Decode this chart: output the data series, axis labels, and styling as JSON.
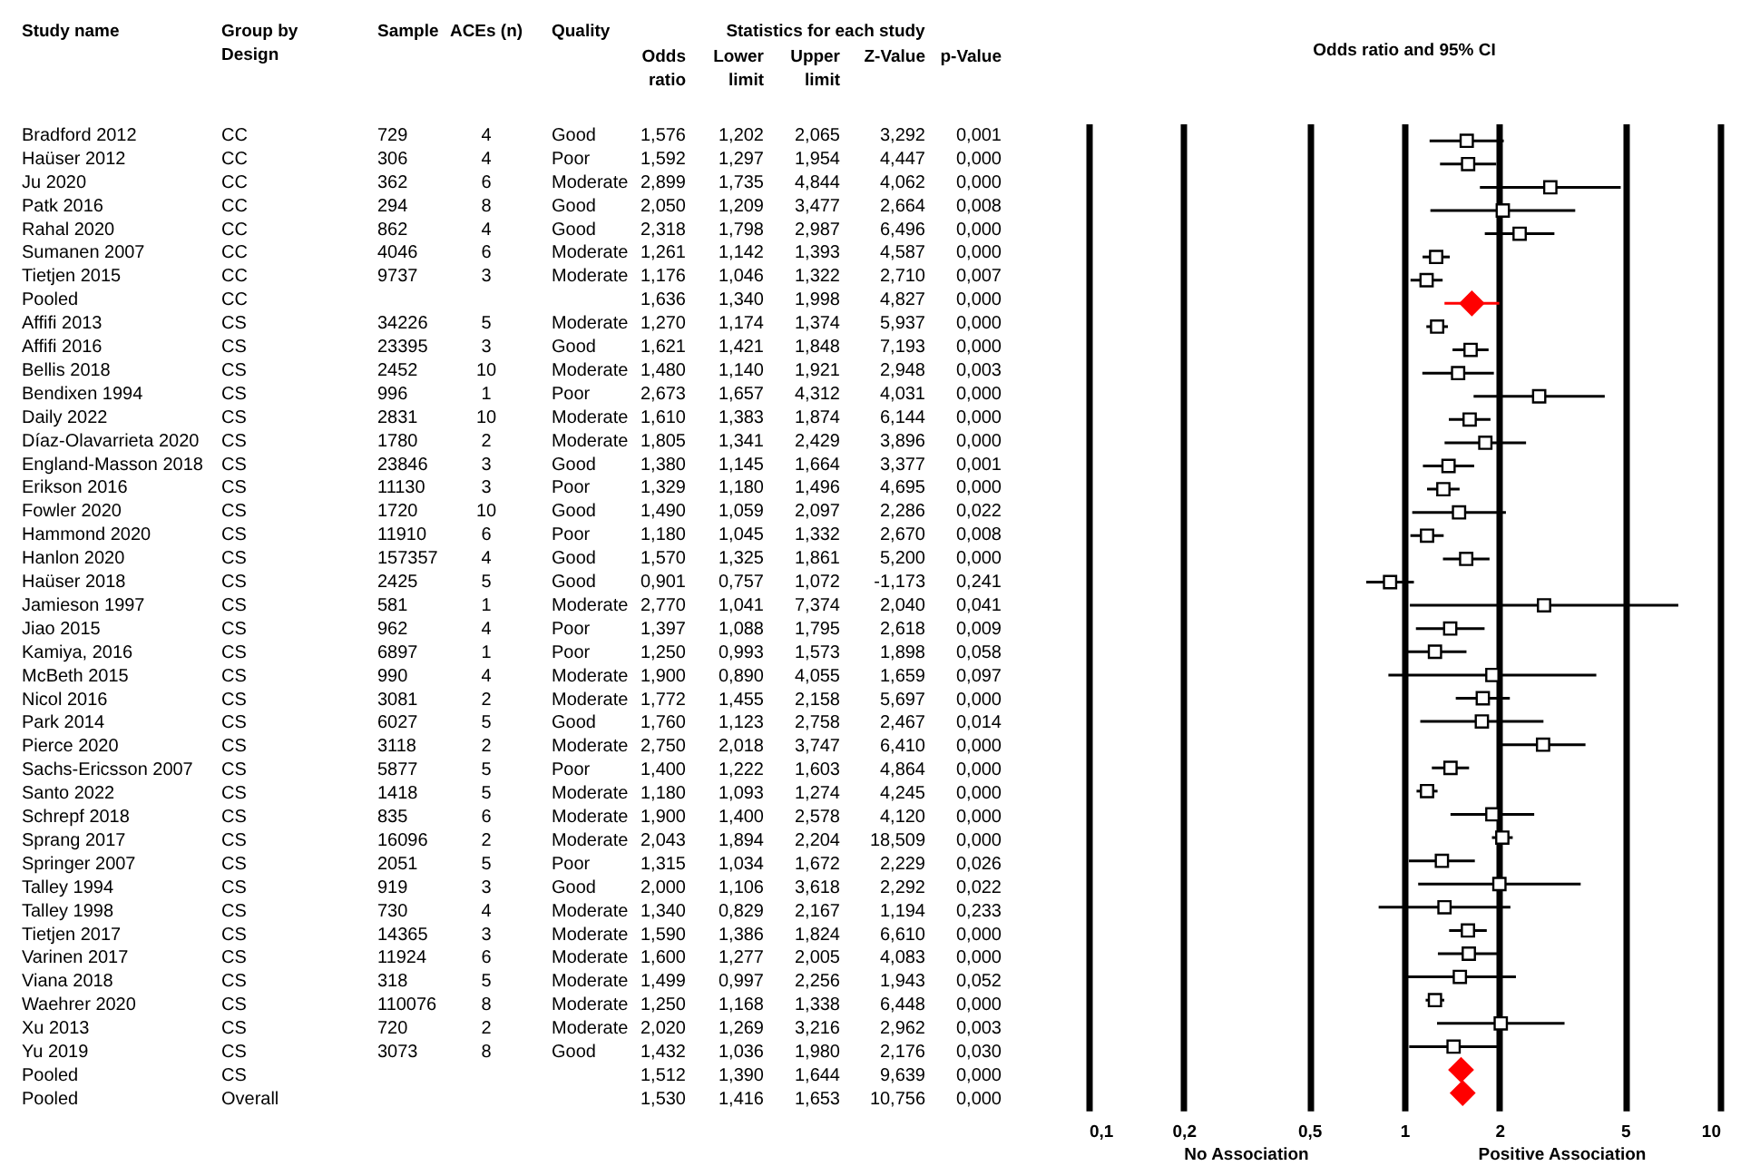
{
  "chart_data": [
    {
      "type": "other",
      "subtitle": "Statistics for each study",
      "categories": [
        "Study name",
        "Group by\nDesign",
        "Sample",
        "ACEs (n)",
        "Quality",
        "Odds\nratio",
        "Lower\nlimit",
        "Upper\nlimit",
        "Z-Value",
        "p-Value"
      ],
      "cell_labels": [
        [
          "Bradford 2012",
          "CC",
          "729",
          "4",
          "Good",
          "1,576",
          "1,202",
          "2,065",
          "3,292",
          "0,001"
        ],
        [
          "Haüser 2012",
          "CC",
          "306",
          "4",
          "Poor",
          "1,592",
          "1,297",
          "1,954",
          "4,447",
          "0,000"
        ],
        [
          "Ju 2020",
          "CC",
          "362",
          "6",
          "Moderate",
          "2,899",
          "1,735",
          "4,844",
          "4,062",
          "0,000"
        ],
        [
          "Patk 2016",
          "CC",
          "294",
          "8",
          "Good",
          "2,050",
          "1,209",
          "3,477",
          "2,664",
          "0,008"
        ],
        [
          "Rahal 2020",
          "CC",
          "862",
          "4",
          "Good",
          "2,318",
          "1,798",
          "2,987",
          "6,496",
          "0,000"
        ],
        [
          "Sumanen 2007",
          "CC",
          "4046",
          "6",
          "Moderate",
          "1,261",
          "1,142",
          "1,393",
          "4,587",
          "0,000"
        ],
        [
          "Tietjen 2015",
          "CC",
          "9737",
          "3",
          "Moderate",
          "1,176",
          "1,046",
          "1,322",
          "2,710",
          "0,007"
        ],
        [
          "Pooled",
          "CC",
          null,
          null,
          null,
          "1,636",
          "1,340",
          "1,998",
          "4,827",
          "0,000"
        ],
        [
          "Affifi 2013",
          "CS",
          "34226",
          "5",
          "Moderate",
          "1,270",
          "1,174",
          "1,374",
          "5,937",
          "0,000"
        ],
        [
          "Affifi 2016",
          "CS",
          "23395",
          "3",
          "Good",
          "1,621",
          "1,421",
          "1,848",
          "7,193",
          "0,000"
        ],
        [
          "Bellis 2018",
          "CS",
          "2452",
          "10",
          "Moderate",
          "1,480",
          "1,140",
          "1,921",
          "2,948",
          "0,003"
        ],
        [
          "Bendixen 1994",
          "CS",
          "996",
          "1",
          "Poor",
          "2,673",
          "1,657",
          "4,312",
          "4,031",
          "0,000"
        ],
        [
          "Daily 2022",
          "CS",
          "2831",
          "10",
          "Moderate",
          "1,610",
          "1,383",
          "1,874",
          "6,144",
          "0,000"
        ],
        [
          "Díaz-Olavarrieta 2020",
          "CS",
          "1780",
          "2",
          "Moderate",
          "1,805",
          "1,341",
          "2,429",
          "3,896",
          "0,000"
        ],
        [
          "England-Masson 2018",
          "CS",
          "23846",
          "3",
          "Good",
          "1,380",
          "1,145",
          "1,664",
          "3,377",
          "0,001"
        ],
        [
          "Erikson 2016",
          "CS",
          "11130",
          "3",
          "Poor",
          "1,329",
          "1,180",
          "1,496",
          "4,695",
          "0,000"
        ],
        [
          "Fowler 2020",
          "CS",
          "1720",
          "10",
          "Good",
          "1,490",
          "1,059",
          "2,097",
          "2,286",
          "0,022"
        ],
        [
          "Hammond 2020",
          "CS",
          "11910",
          "6",
          "Poor",
          "1,180",
          "1,045",
          "1,332",
          "2,670",
          "0,008"
        ],
        [
          "Hanlon 2020",
          "CS",
          "157357",
          "4",
          "Good",
          "1,570",
          "1,325",
          "1,861",
          "5,200",
          "0,000"
        ],
        [
          "Haüser 2018",
          "CS",
          "2425",
          "5",
          "Good",
          "0,901",
          "0,757",
          "1,072",
          "-1,173",
          "0,241"
        ],
        [
          "Jamieson 1997",
          "CS",
          "581",
          "1",
          "Moderate",
          "2,770",
          "1,041",
          "7,374",
          "2,040",
          "0,041"
        ],
        [
          "Jiao 2015",
          "CS",
          "962",
          "4",
          "Poor",
          "1,397",
          "1,088",
          "1,795",
          "2,618",
          "0,009"
        ],
        [
          "Kamiya, 2016",
          "CS",
          "6897",
          "1",
          "Poor",
          "1,250",
          "0,993",
          "1,573",
          "1,898",
          "0,058"
        ],
        [
          "McBeth 2015",
          "CS",
          "990",
          "4",
          "Moderate",
          "1,900",
          "0,890",
          "4,055",
          "1,659",
          "0,097"
        ],
        [
          "Nicol 2016",
          "CS",
          "3081",
          "2",
          "Moderate",
          "1,772",
          "1,455",
          "2,158",
          "5,697",
          "0,000"
        ],
        [
          "Park 2014",
          "CS",
          "6027",
          "5",
          "Good",
          "1,760",
          "1,123",
          "2,758",
          "2,467",
          "0,014"
        ],
        [
          "Pierce 2020",
          "CS",
          "3118",
          "2",
          "Moderate",
          "2,750",
          "2,018",
          "3,747",
          "6,410",
          "0,000"
        ],
        [
          "Sachs-Ericsson 2007",
          "CS",
          "5877",
          "5",
          "Poor",
          "1,400",
          "1,222",
          "1,603",
          "4,864",
          "0,000"
        ],
        [
          "Santo 2022",
          "CS",
          "1418",
          "5",
          "Moderate",
          "1,180",
          "1,093",
          "1,274",
          "4,245",
          "0,000"
        ],
        [
          "Schrepf 2018",
          "CS",
          "835",
          "6",
          "Moderate",
          "1,900",
          "1,400",
          "2,578",
          "4,120",
          "0,000"
        ],
        [
          "Sprang 2017",
          "CS",
          "16096",
          "2",
          "Moderate",
          "2,043",
          "1,894",
          "2,204",
          "18,509",
          "0,000"
        ],
        [
          "Springer 2007",
          "CS",
          "2051",
          "5",
          "Poor",
          "1,315",
          "1,034",
          "1,672",
          "2,229",
          "0,026"
        ],
        [
          "Talley 1994",
          "CS",
          "919",
          "3",
          "Good",
          "2,000",
          "1,106",
          "3,618",
          "2,292",
          "0,022"
        ],
        [
          "Talley 1998",
          "CS",
          "730",
          "4",
          "Moderate",
          "1,340",
          "0,829",
          "2,167",
          "1,194",
          "0,233"
        ],
        [
          "Tietjen 2017",
          "CS",
          "14365",
          "3",
          "Moderate",
          "1,590",
          "1,386",
          "1,824",
          "6,610",
          "0,000"
        ],
        [
          "Varinen 2017",
          "CS",
          "11924",
          "6",
          "Moderate",
          "1,600",
          "1,277",
          "2,005",
          "4,083",
          "0,000"
        ],
        [
          "Viana 2018",
          "CS",
          "318",
          "5",
          "Moderate",
          "1,499",
          "0,997",
          "2,256",
          "1,943",
          "0,052"
        ],
        [
          "Waehrer 2020",
          "CS",
          "110076",
          "8",
          "Moderate",
          "1,250",
          "1,168",
          "1,338",
          "6,448",
          "0,000"
        ],
        [
          "Xu 2013",
          "CS",
          "720",
          "2",
          "Moderate",
          "2,020",
          "1,269",
          "3,216",
          "2,962",
          "0,003"
        ],
        [
          "Yu 2019",
          "CS",
          "3073",
          "8",
          "Good",
          "1,432",
          "1,036",
          "1,980",
          "2,176",
          "0,030"
        ],
        [
          "Pooled",
          "CS",
          null,
          null,
          null,
          "1,512",
          "1,390",
          "1,644",
          "9,639",
          "0,000"
        ],
        [
          "Pooled",
          "Overall",
          null,
          null,
          null,
          "1,530",
          "1,416",
          "1,653",
          "10,756",
          "0,000"
        ]
      ]
    },
    {
      "type": "scatter",
      "orientation": "horizontal",
      "title": "Odds ratio and 95% CI",
      "log": "x",
      "grid": "x",
      "categories": [
        null,
        null,
        null,
        null,
        null,
        null,
        null,
        null,
        null,
        null,
        null,
        null,
        null,
        null,
        null,
        null,
        null,
        null,
        null,
        null,
        null,
        null,
        null,
        null,
        null,
        null,
        null,
        null,
        null,
        null,
        null,
        null,
        null,
        null,
        null,
        null,
        null,
        null,
        null,
        null,
        null,
        null
      ],
      "xlim": [
        0.1,
        10
      ],
      "xticks": [
        {
          "value": 0.1,
          "label": "0,1"
        },
        {
          "value": 0.2,
          "label": "0,2"
        },
        {
          "value": 0.5,
          "label": "0,5"
        },
        1,
        2,
        5,
        10
      ],
      "annotations": [
        "No Association",
        "Positive Association"
      ],
      "series": [
        {
          "color": "#000000",
          "marker": "square",
          "values": [
            1.576,
            1.592,
            2.899,
            2.05,
            2.318,
            1.261,
            1.176,
            null,
            1.27,
            1.621,
            1.48,
            2.673,
            1.61,
            1.805,
            1.38,
            1.329,
            1.49,
            1.18,
            1.57,
            0.901,
            2.77,
            1.397,
            1.25,
            1.9,
            1.772,
            1.76,
            2.75,
            1.4,
            1.18,
            1.9,
            2.043,
            1.315,
            2.0,
            1.34,
            1.59,
            1.6,
            1.499,
            1.25,
            2.02,
            1.432,
            null,
            null
          ],
          "errors": [
            [
              1.202,
              2.065
            ],
            [
              1.297,
              1.954
            ],
            [
              1.735,
              4.844
            ],
            [
              1.209,
              3.477
            ],
            [
              1.798,
              2.987
            ],
            [
              1.142,
              1.393
            ],
            [
              1.046,
              1.322
            ],
            null,
            [
              1.174,
              1.374
            ],
            [
              1.421,
              1.848
            ],
            [
              1.14,
              1.921
            ],
            [
              1.657,
              4.312
            ],
            [
              1.383,
              1.874
            ],
            [
              1.341,
              2.429
            ],
            [
              1.145,
              1.664
            ],
            [
              1.18,
              1.496
            ],
            [
              1.059,
              2.097
            ],
            [
              1.045,
              1.332
            ],
            [
              1.325,
              1.861
            ],
            [
              0.757,
              1.072
            ],
            [
              1.041,
              7.374
            ],
            [
              1.088,
              1.795
            ],
            [
              0.993,
              1.573
            ],
            [
              0.89,
              4.055
            ],
            [
              1.455,
              2.158
            ],
            [
              1.123,
              2.758
            ],
            [
              2.018,
              3.747
            ],
            [
              1.222,
              1.603
            ],
            [
              1.093,
              1.274
            ],
            [
              1.4,
              2.578
            ],
            [
              1.894,
              2.204
            ],
            [
              1.034,
              1.672
            ],
            [
              1.106,
              3.618
            ],
            [
              0.829,
              2.167
            ],
            [
              1.386,
              1.824
            ],
            [
              1.277,
              2.005
            ],
            [
              0.997,
              2.256
            ],
            [
              1.168,
              1.338
            ],
            [
              1.269,
              3.216
            ],
            [
              1.036,
              1.98
            ],
            null,
            null
          ]
        },
        {
          "color": "#ff0000",
          "marker": "diamond",
          "values": [
            null,
            null,
            null,
            null,
            null,
            null,
            null,
            1.636,
            null,
            null,
            null,
            null,
            null,
            null,
            null,
            null,
            null,
            null,
            null,
            null,
            null,
            null,
            null,
            null,
            null,
            null,
            null,
            null,
            null,
            null,
            null,
            null,
            null,
            null,
            null,
            null,
            null,
            null,
            null,
            null,
            1.512,
            1.53
          ],
          "errors": [
            null,
            null,
            null,
            null,
            null,
            null,
            null,
            [
              1.34,
              1.998
            ],
            null,
            null,
            null,
            null,
            null,
            null,
            null,
            null,
            null,
            null,
            null,
            null,
            null,
            null,
            null,
            null,
            null,
            null,
            null,
            null,
            null,
            null,
            null,
            null,
            null,
            null,
            null,
            null,
            null,
            null,
            null,
            null,
            [
              1.39,
              1.644
            ],
            [
              1.416,
              1.653
            ]
          ]
        }
      ]
    }
  ]
}
